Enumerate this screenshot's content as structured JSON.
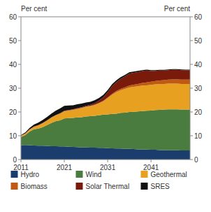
{
  "chart_data": {
    "type": "area",
    "stacked": true,
    "y_label": "Per cent",
    "y2_label": "Per cent",
    "x": [
      2011,
      2012,
      2013,
      2014,
      2015,
      2016,
      2017,
      2018,
      2019,
      2020,
      2021,
      2022,
      2023,
      2024,
      2025,
      2026,
      2027,
      2028,
      2029,
      2030,
      2031,
      2032,
      2033,
      2034,
      2035,
      2036,
      2037,
      2038,
      2039,
      2040,
      2041,
      2042,
      2043,
      2044,
      2045,
      2046,
      2047,
      2048,
      2049,
      2050
    ],
    "series": [
      {
        "name": "Hydro",
        "color": "#1b3d6e",
        "values": [
          6.0,
          6.1,
          6.0,
          5.9,
          5.8,
          5.8,
          5.7,
          5.6,
          5.6,
          5.5,
          5.5,
          5.4,
          5.3,
          5.2,
          5.1,
          5.1,
          5.0,
          5.0,
          4.9,
          4.9,
          4.8,
          4.7,
          4.6,
          4.6,
          4.5,
          4.5,
          4.4,
          4.3,
          4.3,
          4.2,
          4.1,
          4.1,
          4.0,
          4.0,
          3.9,
          3.9,
          3.9,
          3.8,
          3.8,
          3.8
        ]
      },
      {
        "name": "Wind",
        "color": "#4a7c3f",
        "values": [
          3.5,
          4.2,
          5.8,
          6.8,
          7.2,
          7.8,
          8.8,
          9.8,
          10.5,
          11.0,
          11.8,
          12.0,
          12.2,
          12.5,
          12.7,
          13.0,
          13.2,
          13.4,
          13.7,
          14.0,
          14.2,
          14.5,
          14.7,
          15.0,
          15.2,
          15.5,
          15.7,
          15.9,
          16.1,
          16.3,
          16.5,
          16.7,
          16.9,
          17.0,
          17.2,
          17.2,
          17.2,
          17.2,
          17.2,
          17.2
        ]
      },
      {
        "name": "Geothermal",
        "color": "#e8a020",
        "values": [
          0.4,
          0.5,
          0.7,
          1.0,
          1.3,
          1.6,
          1.8,
          2.1,
          2.4,
          2.7,
          2.9,
          3.1,
          3.3,
          3.5,
          3.8,
          4.0,
          4.2,
          4.5,
          5.0,
          5.6,
          6.8,
          8.0,
          9.0,
          9.5,
          10.0,
          10.3,
          10.5,
          10.6,
          10.7,
          10.7,
          10.8,
          10.8,
          10.8,
          10.8,
          10.8,
          10.8,
          10.8,
          10.8,
          10.8,
          10.8
        ]
      },
      {
        "name": "Biomass",
        "color": "#c05a10",
        "values": [
          0.15,
          0.15,
          0.15,
          0.15,
          0.15,
          0.15,
          0.15,
          0.15,
          0.15,
          0.15,
          0.2,
          0.2,
          0.2,
          0.2,
          0.2,
          0.2,
          0.2,
          0.2,
          0.2,
          0.2,
          0.3,
          0.4,
          0.5,
          0.6,
          0.7,
          0.8,
          0.9,
          1.0,
          1.1,
          1.2,
          1.3,
          1.4,
          1.5,
          1.6,
          1.7,
          1.8,
          1.8,
          1.8,
          1.8,
          1.8
        ]
      },
      {
        "name": "Solar Thermal",
        "color": "#7a1a0a",
        "values": [
          0.05,
          0.05,
          0.05,
          0.05,
          0.05,
          0.05,
          0.05,
          0.05,
          0.05,
          0.1,
          0.1,
          0.1,
          0.1,
          0.2,
          0.2,
          0.3,
          0.4,
          0.6,
          1.0,
          1.5,
          2.2,
          3.2,
          3.8,
          4.2,
          4.6,
          5.0,
          5.0,
          5.0,
          5.0,
          5.0,
          4.5,
          4.3,
          4.2,
          4.0,
          4.0,
          4.0,
          4.0,
          4.0,
          3.9,
          3.9
        ]
      },
      {
        "name": "SRES",
        "color": "#111111",
        "values": [
          0.2,
          0.4,
          0.6,
          0.8,
          1.0,
          1.2,
          1.4,
          1.6,
          1.8,
          2.0,
          2.1,
          1.9,
          1.7,
          1.6,
          1.5,
          1.4,
          1.3,
          1.2,
          1.1,
          1.0,
          0.9,
          0.8,
          0.7,
          0.7,
          0.6,
          0.6,
          0.5,
          0.5,
          0.4,
          0.4,
          0.4,
          0.3,
          0.3,
          0.3,
          0.3,
          0.3,
          0.3,
          0.3,
          0.3,
          0.3
        ]
      }
    ],
    "xlim": [
      2011,
      2050
    ],
    "xticks": [
      2011,
      2021,
      2031,
      2041
    ],
    "ylim": [
      0,
      60
    ],
    "yticks": [
      0,
      10,
      20,
      30,
      40,
      50,
      60
    ],
    "y2lim": [
      0,
      60
    ],
    "y2ticks": [
      0,
      10,
      20,
      30,
      40,
      50,
      60
    ],
    "grid": false,
    "legend": "bottom"
  }
}
